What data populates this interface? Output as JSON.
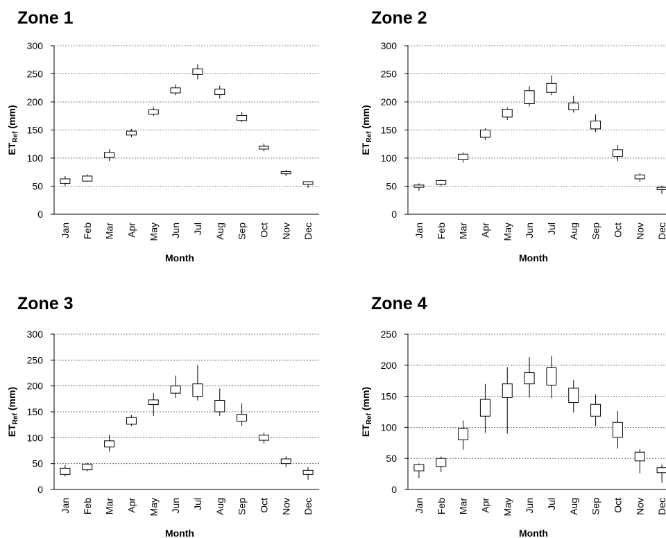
{
  "chart_data": [
    {
      "type": "box",
      "title": "Zone 1",
      "xlabel": "Month",
      "ylabel": "ET_Ref (mm)",
      "ylabel_main": "ET",
      "ylabel_sub": "Ref",
      "ylabel_unit": " (mm)",
      "ylim": [
        0,
        300
      ],
      "yticks": [
        0,
        50,
        100,
        150,
        200,
        250,
        300
      ],
      "grid": true,
      "categories": [
        "Jan",
        "Feb",
        "Mar",
        "Apr",
        "May",
        "Jun",
        "Jul",
        "Aug",
        "Sep",
        "Oct",
        "Nov",
        "Dec"
      ],
      "boxes": [
        {
          "min": 50,
          "q1": 55,
          "q3": 63,
          "max": 68
        },
        {
          "min": 58,
          "q1": 59,
          "q3": 68,
          "max": 71
        },
        {
          "min": 95,
          "q1": 101,
          "q3": 110,
          "max": 116
        },
        {
          "min": 137,
          "q1": 141,
          "q3": 148,
          "max": 152
        },
        {
          "min": 175,
          "q1": 178,
          "q3": 186,
          "max": 191
        },
        {
          "min": 212,
          "q1": 216,
          "q3": 225,
          "max": 231
        },
        {
          "min": 240,
          "q1": 249,
          "q3": 259,
          "max": 267
        },
        {
          "min": 206,
          "q1": 213,
          "q3": 223,
          "max": 229
        },
        {
          "min": 164,
          "q1": 167,
          "q3": 176,
          "max": 182
        },
        {
          "min": 112,
          "q1": 116,
          "q3": 121,
          "max": 126
        },
        {
          "min": 68,
          "q1": 72,
          "q3": 76,
          "max": 79
        },
        {
          "min": 47,
          "q1": 53,
          "q3": 58,
          "max": 59
        }
      ]
    },
    {
      "type": "box",
      "title": "Zone 2",
      "xlabel": "Month",
      "ylabel": "ET_Ref (mm)",
      "ylabel_main": "ET",
      "ylabel_sub": "Ref",
      "ylabel_unit": " (mm)",
      "ylim": [
        0,
        300
      ],
      "yticks": [
        0,
        50,
        100,
        150,
        200,
        250,
        300
      ],
      "grid": true,
      "categories": [
        "Jan",
        "Feb",
        "Mar",
        "Apr",
        "May",
        "Jun",
        "Jul",
        "Aug",
        "Sep",
        "Oct",
        "Nov",
        "Dec"
      ],
      "boxes": [
        {
          "min": 42,
          "q1": 48,
          "q3": 52,
          "max": 55
        },
        {
          "min": 50,
          "q1": 53,
          "q3": 60,
          "max": 62
        },
        {
          "min": 92,
          "q1": 97,
          "q3": 107,
          "max": 110
        },
        {
          "min": 132,
          "q1": 137,
          "q3": 150,
          "max": 153
        },
        {
          "min": 168,
          "q1": 173,
          "q3": 187,
          "max": 190
        },
        {
          "min": 192,
          "q1": 197,
          "q3": 220,
          "max": 228
        },
        {
          "min": 212,
          "q1": 217,
          "q3": 233,
          "max": 247
        },
        {
          "min": 181,
          "q1": 186,
          "q3": 198,
          "max": 211
        },
        {
          "min": 146,
          "q1": 152,
          "q3": 166,
          "max": 178
        },
        {
          "min": 95,
          "q1": 103,
          "q3": 115,
          "max": 123
        },
        {
          "min": 58,
          "q1": 63,
          "q3": 70,
          "max": 73
        },
        {
          "min": 36,
          "q1": 44,
          "q3": 48,
          "max": 51
        }
      ]
    },
    {
      "type": "box",
      "title": "Zone 3",
      "xlabel": "Month",
      "ylabel": "ET_Ref (mm)",
      "ylabel_main": "ET",
      "ylabel_sub": "Ref",
      "ylabel_unit": " (mm)",
      "ylim": [
        0,
        300
      ],
      "yticks": [
        0,
        50,
        100,
        150,
        200,
        250,
        300
      ],
      "grid": true,
      "categories": [
        "Jan",
        "Feb",
        "Mar",
        "Apr",
        "May",
        "Jun",
        "Jul",
        "Aug",
        "Sep",
        "Oct",
        "Nov",
        "Dec"
      ],
      "boxes": [
        {
          "min": 25,
          "q1": 29,
          "q3": 41,
          "max": 47
        },
        {
          "min": 35,
          "q1": 38,
          "q3": 49,
          "max": 52
        },
        {
          "min": 73,
          "q1": 82,
          "q3": 94,
          "max": 106
        },
        {
          "min": 122,
          "q1": 126,
          "q3": 139,
          "max": 144
        },
        {
          "min": 142,
          "q1": 164,
          "q3": 173,
          "max": 186
        },
        {
          "min": 177,
          "q1": 186,
          "q3": 200,
          "max": 220
        },
        {
          "min": 172,
          "q1": 180,
          "q3": 204,
          "max": 240
        },
        {
          "min": 142,
          "q1": 150,
          "q3": 172,
          "max": 195
        },
        {
          "min": 123,
          "q1": 132,
          "q3": 145,
          "max": 166
        },
        {
          "min": 89,
          "q1": 95,
          "q3": 105,
          "max": 110
        },
        {
          "min": 43,
          "q1": 50,
          "q3": 59,
          "max": 64
        },
        {
          "min": 19,
          "q1": 29,
          "q3": 37,
          "max": 43
        }
      ]
    },
    {
      "type": "box",
      "title": "Zone 4",
      "xlabel": "Month",
      "ylabel": "ET_Ref (mm)",
      "ylabel_main": "ET",
      "ylabel_sub": "Ref",
      "ylabel_unit": " (mm)",
      "ylim": [
        0,
        250
      ],
      "yticks": [
        0,
        50,
        100,
        150,
        200,
        250
      ],
      "grid": true,
      "categories": [
        "Jan",
        "Feb",
        "Mar",
        "Apr",
        "May",
        "Jun",
        "Jul",
        "Aug",
        "Sep",
        "Oct",
        "Nov",
        "Dec"
      ],
      "boxes": [
        {
          "min": 18,
          "q1": 30,
          "q3": 40,
          "max": 42
        },
        {
          "min": 28,
          "q1": 37,
          "q3": 50,
          "max": 53
        },
        {
          "min": 64,
          "q1": 80,
          "q3": 98,
          "max": 111
        },
        {
          "min": 91,
          "q1": 118,
          "q3": 145,
          "max": 170
        },
        {
          "min": 90,
          "q1": 148,
          "q3": 170,
          "max": 197
        },
        {
          "min": 148,
          "q1": 170,
          "q3": 188,
          "max": 213
        },
        {
          "min": 147,
          "q1": 168,
          "q3": 196,
          "max": 215
        },
        {
          "min": 124,
          "q1": 140,
          "q3": 163,
          "max": 176
        },
        {
          "min": 102,
          "q1": 118,
          "q3": 137,
          "max": 153
        },
        {
          "min": 66,
          "q1": 84,
          "q3": 108,
          "max": 126
        },
        {
          "min": 26,
          "q1": 46,
          "q3": 60,
          "max": 65
        },
        {
          "min": 11,
          "q1": 27,
          "q3": 35,
          "max": 40
        }
      ]
    }
  ]
}
